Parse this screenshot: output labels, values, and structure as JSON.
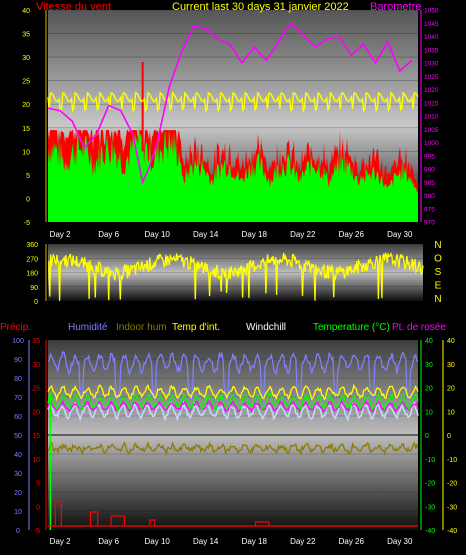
{
  "chart_data": [
    {
      "type": "line",
      "panel": "wind_barometer",
      "title": "Current last 30 days 31 janvier 2022",
      "left_axis_label": "Vitesse du vent",
      "right_axis_label": "Barometre",
      "left_axis": {
        "ylim": [
          -5,
          40
        ],
        "ticks": [
          "-5",
          "0",
          "5",
          "10",
          "15",
          "20",
          "25",
          "30",
          "35",
          "40"
        ]
      },
      "right_axis": {
        "ylim": [
          970,
          1050
        ],
        "ticks": [
          "970",
          "975",
          "980",
          "985",
          "990",
          "995",
          "1000",
          "1005",
          "1010",
          "1015",
          "1020",
          "1025",
          "1030",
          "1035",
          "1040",
          "1045",
          "1050"
        ]
      },
      "x_ticks": [
        "Day 2",
        "Day 6",
        "Day 10",
        "Day 14",
        "Day 18",
        "Day 22",
        "Day 26",
        "Day 30"
      ],
      "series": [
        {
          "name": "",
          "color": "#ff00ff",
          "axis": "right",
          "days": [
            1,
            2,
            3,
            4,
            5,
            6,
            7,
            8,
            8.8,
            9.3,
            10,
            11,
            12,
            13,
            14,
            15,
            16,
            17,
            18,
            19,
            20,
            21,
            22,
            23,
            24,
            25,
            26,
            27,
            28,
            29,
            30,
            31
          ],
          "values": [
            1013,
            1012,
            1008,
            998,
            1003,
            1014,
            1012,
            1003,
            985,
            990,
            1000,
            1021,
            1034,
            1044,
            1043,
            1039,
            1037,
            1030,
            1036,
            1031,
            1038,
            1045,
            1041,
            1036,
            1039,
            1040,
            1033,
            1037,
            1030,
            1038,
            1027,
            1031
          ]
        },
        {
          "name": "",
          "color": "#ffff00",
          "axis": "left",
          "note_level": "approx 21-24 with periodic dips",
          "base": 21.5,
          "amplitude": 1.5,
          "dip": 3
        },
        {
          "name": "",
          "color": "#ff0000",
          "axis": "left",
          "kind": "gust",
          "spike_day": 8.8,
          "spike_value": 29
        },
        {
          "name": "",
          "color": "#00ff00",
          "axis": "left",
          "kind": "average"
        }
      ]
    },
    {
      "type": "scatter",
      "panel": "wind_direction",
      "left_axis": {
        "ylim": [
          0,
          360
        ],
        "ticks": [
          "0",
          "90",
          "180",
          "270",
          "360"
        ]
      },
      "direction_labels": [
        "N",
        "O",
        "S",
        "E",
        "N"
      ],
      "series": [
        {
          "name": "",
          "color": "#ffff00"
        }
      ]
    },
    {
      "type": "line",
      "panel": "temperature_humidity",
      "left_axis": {
        "ylim": [
          0,
          100
        ],
        "ticks": [
          "0",
          "10",
          "20",
          "30",
          "40",
          "50",
          "60",
          "70",
          "80",
          "90",
          "100"
        ]
      },
      "left_axis2": {
        "ylim": [
          -5,
          35
        ],
        "ticks": [
          "-5",
          "0",
          "5",
          "10",
          "15",
          "20",
          "25",
          "30",
          "35"
        ]
      },
      "right_axis": {
        "ylim": [
          -40,
          40
        ],
        "ticks": [
          "-40",
          "-30",
          "-20",
          "-10",
          "0",
          "10",
          "20",
          "30",
          "40"
        ]
      },
      "right_axis2": {
        "ylim": [
          -40,
          40
        ],
        "ticks": [
          "-40",
          "-30",
          "-20",
          "-10",
          "0",
          "10",
          "20",
          "30",
          "40"
        ]
      },
      "x_ticks": [
        "Day 2",
        "Day 6",
        "Day 10",
        "Day 14",
        "Day 18",
        "Day 22",
        "Day 26",
        "Day 30"
      ],
      "legend": [
        {
          "label": "Précip.",
          "color": "#ff0000"
        },
        {
          "label": "Humidité",
          "color": "#8080ff"
        },
        {
          "label": "Indoor hum",
          "color": "#8c7a00"
        },
        {
          "label": "Temp d'int.",
          "color": "#ffff00"
        },
        {
          "label": "Windchill",
          "color": "#ffffff"
        },
        {
          "label": "Temperature (°C)",
          "color": "#00ff00"
        },
        {
          "label": "Pt. de rosée",
          "color": "#ff00ff"
        }
      ],
      "series_levels": {
        "humidity_pct_approx": [
          80,
          95
        ],
        "indoor_hum_pct_approx": [
          38,
          45
        ],
        "indoor_temp_c_approx": [
          17,
          22
        ],
        "temperature_c_approx": [
          12,
          20
        ],
        "dewpoint_c_approx": [
          11,
          17
        ]
      }
    }
  ],
  "colors": {
    "bg": "#000000",
    "axis_left": "#d9b400",
    "axis_right_baro": "#ff00ff",
    "yellow": "#ffff00",
    "green": "#00ff00",
    "red": "#ff0000",
    "magenta": "#ff00ff"
  }
}
